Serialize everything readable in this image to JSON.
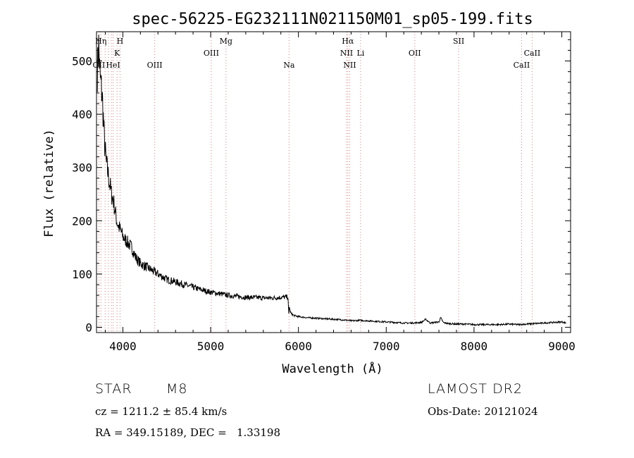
{
  "chart_data": {
    "type": "line",
    "title": "spec-56225-EG232111N021150M01_sp05-199.fits",
    "xlabel": "Wavelength (Å)",
    "ylabel": "Flux (relative)",
    "xlim": [
      3700,
      9100
    ],
    "ylim": [
      -10,
      555
    ],
    "xticks": [
      4000,
      5000,
      6000,
      7000,
      8000,
      9000
    ],
    "yticks": [
      0,
      100,
      200,
      300,
      400,
      500
    ],
    "grid": false,
    "series": [
      {
        "x": [
          3710,
          3725,
          3740,
          3755,
          3770,
          3790,
          3810,
          3830,
          3850,
          3870,
          3890,
          3910,
          3930,
          3950,
          3980,
          4000,
          4050,
          4100,
          4150,
          4200,
          4250,
          4300,
          4350,
          4400,
          4450,
          4500,
          4600,
          4700,
          4800,
          4900,
          5000,
          5100,
          5200,
          5300,
          5400,
          5500,
          5600,
          5700,
          5800,
          5880,
          5890,
          5896,
          5905,
          5920,
          5950,
          6000,
          6100,
          6200,
          6300,
          6400,
          6500,
          6560,
          6600,
          6700,
          6800,
          6900,
          7000,
          7100,
          7200,
          7300,
          7400,
          7450,
          7500,
          7550,
          7600,
          7620,
          7650,
          7700,
          7800,
          7900,
          8000,
          8100,
          8200,
          8300,
          8400,
          8500,
          8600,
          8700,
          8800,
          8900,
          9000,
          9050
        ],
        "y": [
          480,
          530,
          470,
          450,
          420,
          350,
          310,
          290,
          270,
          250,
          240,
          220,
          200,
          190,
          180,
          170,
          160,
          150,
          130,
          120,
          115,
          110,
          105,
          100,
          95,
          90,
          85,
          80,
          75,
          70,
          66,
          63,
          60,
          58,
          56,
          56,
          55,
          55,
          56,
          57,
          25,
          40,
          30,
          25,
          22,
          20,
          18,
          17,
          16,
          15,
          14,
          13,
          12,
          13,
          12,
          11,
          10,
          9,
          8,
          8,
          9,
          15,
          8,
          9,
          10,
          18,
          9,
          7,
          6,
          6,
          5,
          5,
          5,
          5,
          6,
          5,
          6,
          7,
          8,
          9,
          10,
          8
        ]
      }
    ],
    "lines": [
      {
        "x": 3727,
        "label": "OII",
        "row": 3
      },
      {
        "x": 3750,
        "label": "Hη",
        "row": 1
      },
      {
        "x": 3798,
        "label": "",
        "row": 0
      },
      {
        "x": 3835,
        "label": "",
        "row": 0
      },
      {
        "x": 3869,
        "label": "",
        "row": 0
      },
      {
        "x": 3889,
        "label": "HeI",
        "row": 3
      },
      {
        "x": 3934,
        "label": "K",
        "row": 2
      },
      {
        "x": 3968,
        "label": "H",
        "row": 1
      },
      {
        "x": 4363,
        "label": "OIII",
        "row": 3
      },
      {
        "x": 5007,
        "label": "OIII",
        "row": 2
      },
      {
        "x": 5175,
        "label": "Mg",
        "row": 1
      },
      {
        "x": 5893,
        "label": "Na",
        "row": 3
      },
      {
        "x": 6548,
        "label": "NII",
        "row": 2
      },
      {
        "x": 6563,
        "label": "Hα",
        "row": 1
      },
      {
        "x": 6584,
        "label": "NII",
        "row": 3
      },
      {
        "x": 6708,
        "label": "Li",
        "row": 2
      },
      {
        "x": 7325,
        "label": "OII",
        "row": 2
      },
      {
        "x": 7825,
        "label": "SII",
        "row": 1
      },
      {
        "x": 8542,
        "label": "CaII",
        "row": 3
      },
      {
        "x": 8662,
        "label": "CaII",
        "row": 2
      }
    ]
  },
  "info": {
    "object_class": "STAR",
    "subclass": "M8",
    "survey": "LAMOST DR2",
    "cz": "cz = 1211.2 ± 85.4 km/s",
    "obs_date": "Obs-Date: 20121024",
    "radec": "RA = 349.15189, DEC =   1.33198"
  }
}
